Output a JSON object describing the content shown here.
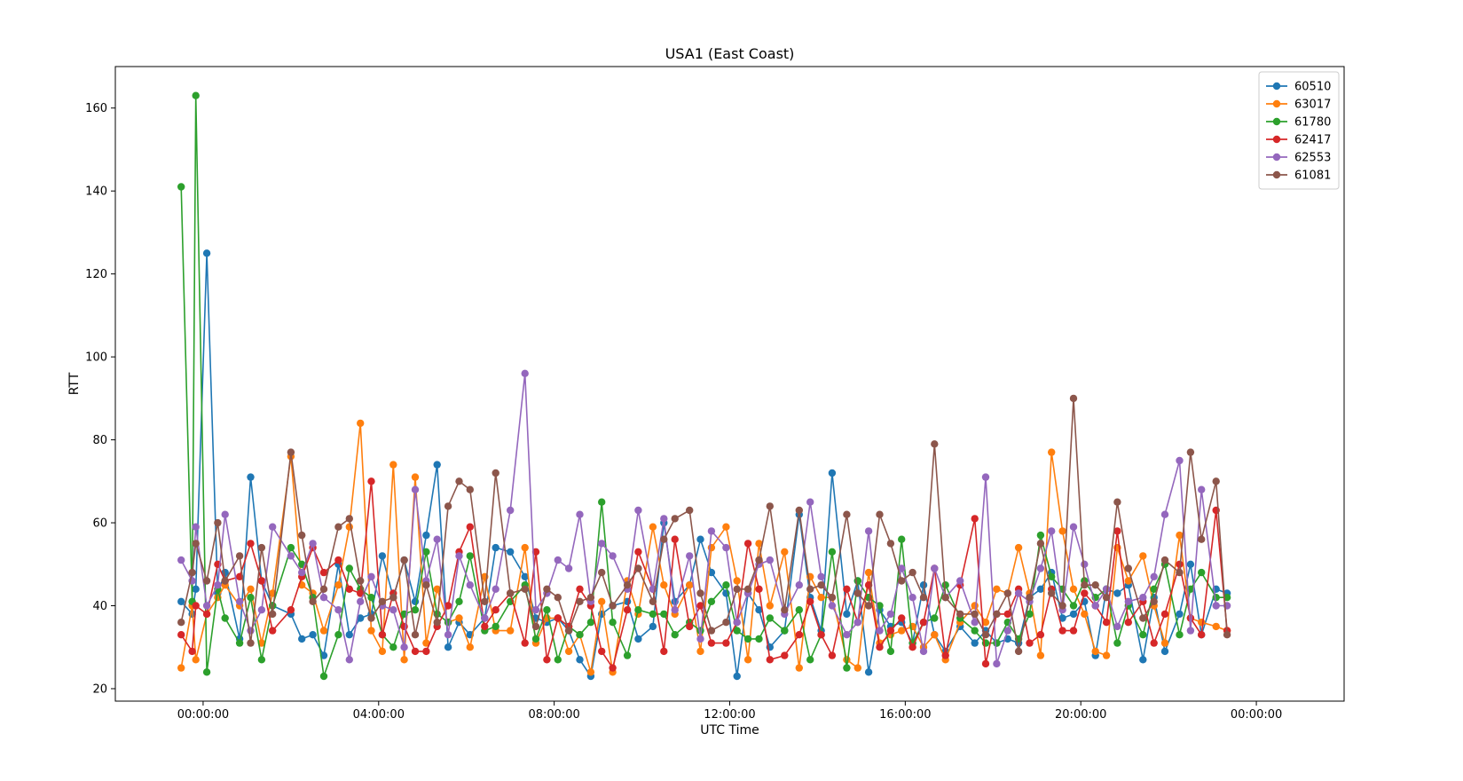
{
  "chart_data": {
    "type": "line",
    "title": "USA1 (East Coast)",
    "xlabel": "UTC Time",
    "ylabel": "RTT",
    "x_axis_kind": "time",
    "xlim": [
      "-02:00",
      "26:00"
    ],
    "ylim": [
      17,
      170
    ],
    "yticks": [
      20,
      40,
      60,
      80,
      100,
      120,
      140,
      160
    ],
    "xticks": [
      {
        "value": "00:00",
        "label": "00:00:00"
      },
      {
        "value": "04:00",
        "label": "04:00:00"
      },
      {
        "value": "08:00",
        "label": "08:00:00"
      },
      {
        "value": "12:00",
        "label": "12:00:00"
      },
      {
        "value": "16:00",
        "label": "16:00:00"
      },
      {
        "value": "20:00",
        "label": "20:00:00"
      },
      {
        "value": "24:00",
        "label": "00:00:00"
      }
    ],
    "grid": false,
    "legend_position": "top-right",
    "marker": "circle",
    "x": [
      "-00:30",
      "-00:15",
      "-00:10",
      "00:05",
      "00:20",
      "00:30",
      "00:50",
      "01:05",
      "01:20",
      "01:35",
      "02:00",
      "02:15",
      "02:30",
      "02:45",
      "03:05",
      "03:20",
      "03:35",
      "03:50",
      "04:05",
      "04:20",
      "04:35",
      "04:50",
      "05:05",
      "05:20",
      "05:35",
      "05:50",
      "06:05",
      "06:25",
      "06:40",
      "07:00",
      "07:20",
      "07:35",
      "07:50",
      "08:05",
      "08:20",
      "08:35",
      "08:50",
      "09:05",
      "09:20",
      "09:40",
      "09:55",
      "10:15",
      "10:30",
      "10:45",
      "11:05",
      "11:20",
      "11:35",
      "11:55",
      "12:10",
      "12:25",
      "12:40",
      "12:55",
      "13:15",
      "13:35",
      "13:50",
      "14:05",
      "14:20",
      "14:40",
      "14:55",
      "15:10",
      "15:25",
      "15:40",
      "15:55",
      "16:10",
      "16:25",
      "16:40",
      "16:55",
      "17:15",
      "17:35",
      "17:50",
      "18:05",
      "18:20",
      "18:35",
      "18:50",
      "19:05",
      "19:20",
      "19:35",
      "19:50",
      "20:05",
      "20:20",
      "20:35",
      "20:50",
      "21:05",
      "21:25",
      "21:40",
      "21:55",
      "22:15",
      "22:30",
      "22:45",
      "23:05",
      "23:20"
    ],
    "series": [
      {
        "name": "60510",
        "color": "#1f77b4",
        "values": [
          41,
          38,
          44,
          125,
          43,
          48,
          32,
          71,
          46,
          40,
          38,
          32,
          33,
          28,
          50,
          33,
          37,
          38,
          52,
          42,
          51,
          41,
          57,
          74,
          30,
          36,
          33,
          37,
          54,
          53,
          47,
          37,
          36,
          37,
          34,
          27,
          23,
          38,
          40,
          41,
          32,
          35,
          60,
          41,
          45,
          56,
          48,
          43,
          23,
          43,
          39,
          30,
          34,
          62,
          42,
          34,
          72,
          38,
          46,
          24,
          39,
          35,
          36,
          31,
          45,
          33,
          29,
          35,
          31,
          34,
          31,
          32,
          31,
          42,
          44,
          48,
          37,
          38,
          41,
          28,
          44,
          43,
          45,
          27,
          42,
          29,
          38,
          50,
          33,
          44,
          43
        ]
      },
      {
        "name": "63017",
        "color": "#ff7f0e",
        "values": [
          25,
          40,
          27,
          38,
          42,
          45,
          40,
          44,
          31,
          43,
          76,
          45,
          43,
          34,
          45,
          59,
          84,
          34,
          29,
          74,
          27,
          71,
          31,
          44,
          36,
          37,
          30,
          47,
          34,
          34,
          54,
          31,
          37,
          37,
          29,
          33,
          24,
          41,
          24,
          46,
          38,
          59,
          45,
          38,
          45,
          29,
          54,
          59,
          46,
          27,
          55,
          40,
          53,
          25,
          47,
          42,
          42,
          27,
          25,
          48,
          31,
          33,
          34,
          35,
          30,
          33,
          27,
          36,
          40,
          36,
          44,
          43,
          54,
          43,
          28,
          77,
          58,
          44,
          38,
          29,
          28,
          54,
          46,
          52,
          40,
          31,
          57,
          37,
          36,
          35,
          34
        ]
      },
      {
        "name": "61780",
        "color": "#2ca02c",
        "values": [
          141,
          41,
          163,
          24,
          44,
          37,
          31,
          42,
          27,
          40,
          54,
          50,
          42,
          23,
          33,
          49,
          44,
          42,
          33,
          30,
          38,
          39,
          53,
          38,
          36,
          41,
          52,
          34,
          35,
          41,
          45,
          32,
          39,
          27,
          35,
          33,
          36,
          65,
          36,
          28,
          39,
          38,
          38,
          33,
          36,
          34,
          41,
          45,
          34,
          32,
          32,
          37,
          34,
          39,
          27,
          33,
          53,
          25,
          46,
          42,
          40,
          29,
          56,
          31,
          36,
          37,
          45,
          37,
          34,
          31,
          31,
          36,
          32,
          38,
          57,
          47,
          44,
          40,
          46,
          42,
          44,
          31,
          40,
          33,
          44,
          50,
          33,
          44,
          48,
          42,
          42
        ]
      },
      {
        "name": "62417",
        "color": "#d62728",
        "values": [
          33,
          29,
          40,
          38,
          50,
          46,
          47,
          55,
          46,
          34,
          39,
          47,
          54,
          48,
          51,
          44,
          43,
          70,
          33,
          43,
          35,
          29,
          29,
          35,
          40,
          53,
          59,
          35,
          39,
          43,
          31,
          53,
          27,
          37,
          35,
          44,
          40,
          29,
          25,
          39,
          53,
          44,
          29,
          56,
          35,
          40,
          31,
          31,
          36,
          55,
          44,
          27,
          28,
          33,
          41,
          33,
          28,
          44,
          36,
          45,
          30,
          34,
          37,
          30,
          36,
          49,
          28,
          45,
          61,
          26,
          38,
          38,
          44,
          31,
          33,
          44,
          34,
          34,
          43,
          40,
          36,
          58,
          36,
          41,
          31,
          38,
          50,
          37,
          33,
          63,
          34
        ]
      },
      {
        "name": "62553",
        "color": "#9467bd",
        "values": [
          51,
          46,
          59,
          40,
          45,
          62,
          41,
          34,
          39,
          59,
          52,
          48,
          55,
          42,
          39,
          27,
          41,
          47,
          40,
          39,
          30,
          68,
          46,
          56,
          33,
          52,
          45,
          37,
          44,
          63,
          96,
          39,
          43,
          51,
          49,
          62,
          41,
          55,
          52,
          44,
          63,
          44,
          61,
          39,
          52,
          32,
          58,
          54,
          36,
          43,
          50,
          51,
          38,
          45,
          65,
          47,
          40,
          33,
          36,
          58,
          34,
          38,
          49,
          42,
          29,
          49,
          42,
          46,
          36,
          71,
          26,
          34,
          43,
          41,
          49,
          58,
          39,
          59,
          50,
          40,
          44,
          35,
          41,
          42,
          47,
          62,
          75,
          34,
          68,
          40,
          40
        ]
      },
      {
        "name": "61081",
        "color": "#8c564b",
        "values": [
          36,
          48,
          55,
          46,
          60,
          46,
          52,
          31,
          54,
          38,
          77,
          57,
          41,
          44,
          59,
          61,
          46,
          37,
          41,
          42,
          51,
          33,
          45,
          36,
          64,
          70,
          68,
          41,
          72,
          43,
          44,
          35,
          44,
          42,
          34,
          41,
          42,
          48,
          40,
          45,
          49,
          41,
          56,
          61,
          63,
          43,
          34,
          36,
          44,
          44,
          51,
          64,
          39,
          63,
          44,
          45,
          42,
          62,
          43,
          40,
          62,
          55,
          46,
          48,
          42,
          79,
          42,
          38,
          38,
          33,
          38,
          43,
          29,
          42,
          55,
          43,
          40,
          90,
          45,
          45,
          42,
          65,
          49,
          37,
          41,
          51,
          48,
          77,
          56,
          70,
          33
        ]
      }
    ]
  }
}
